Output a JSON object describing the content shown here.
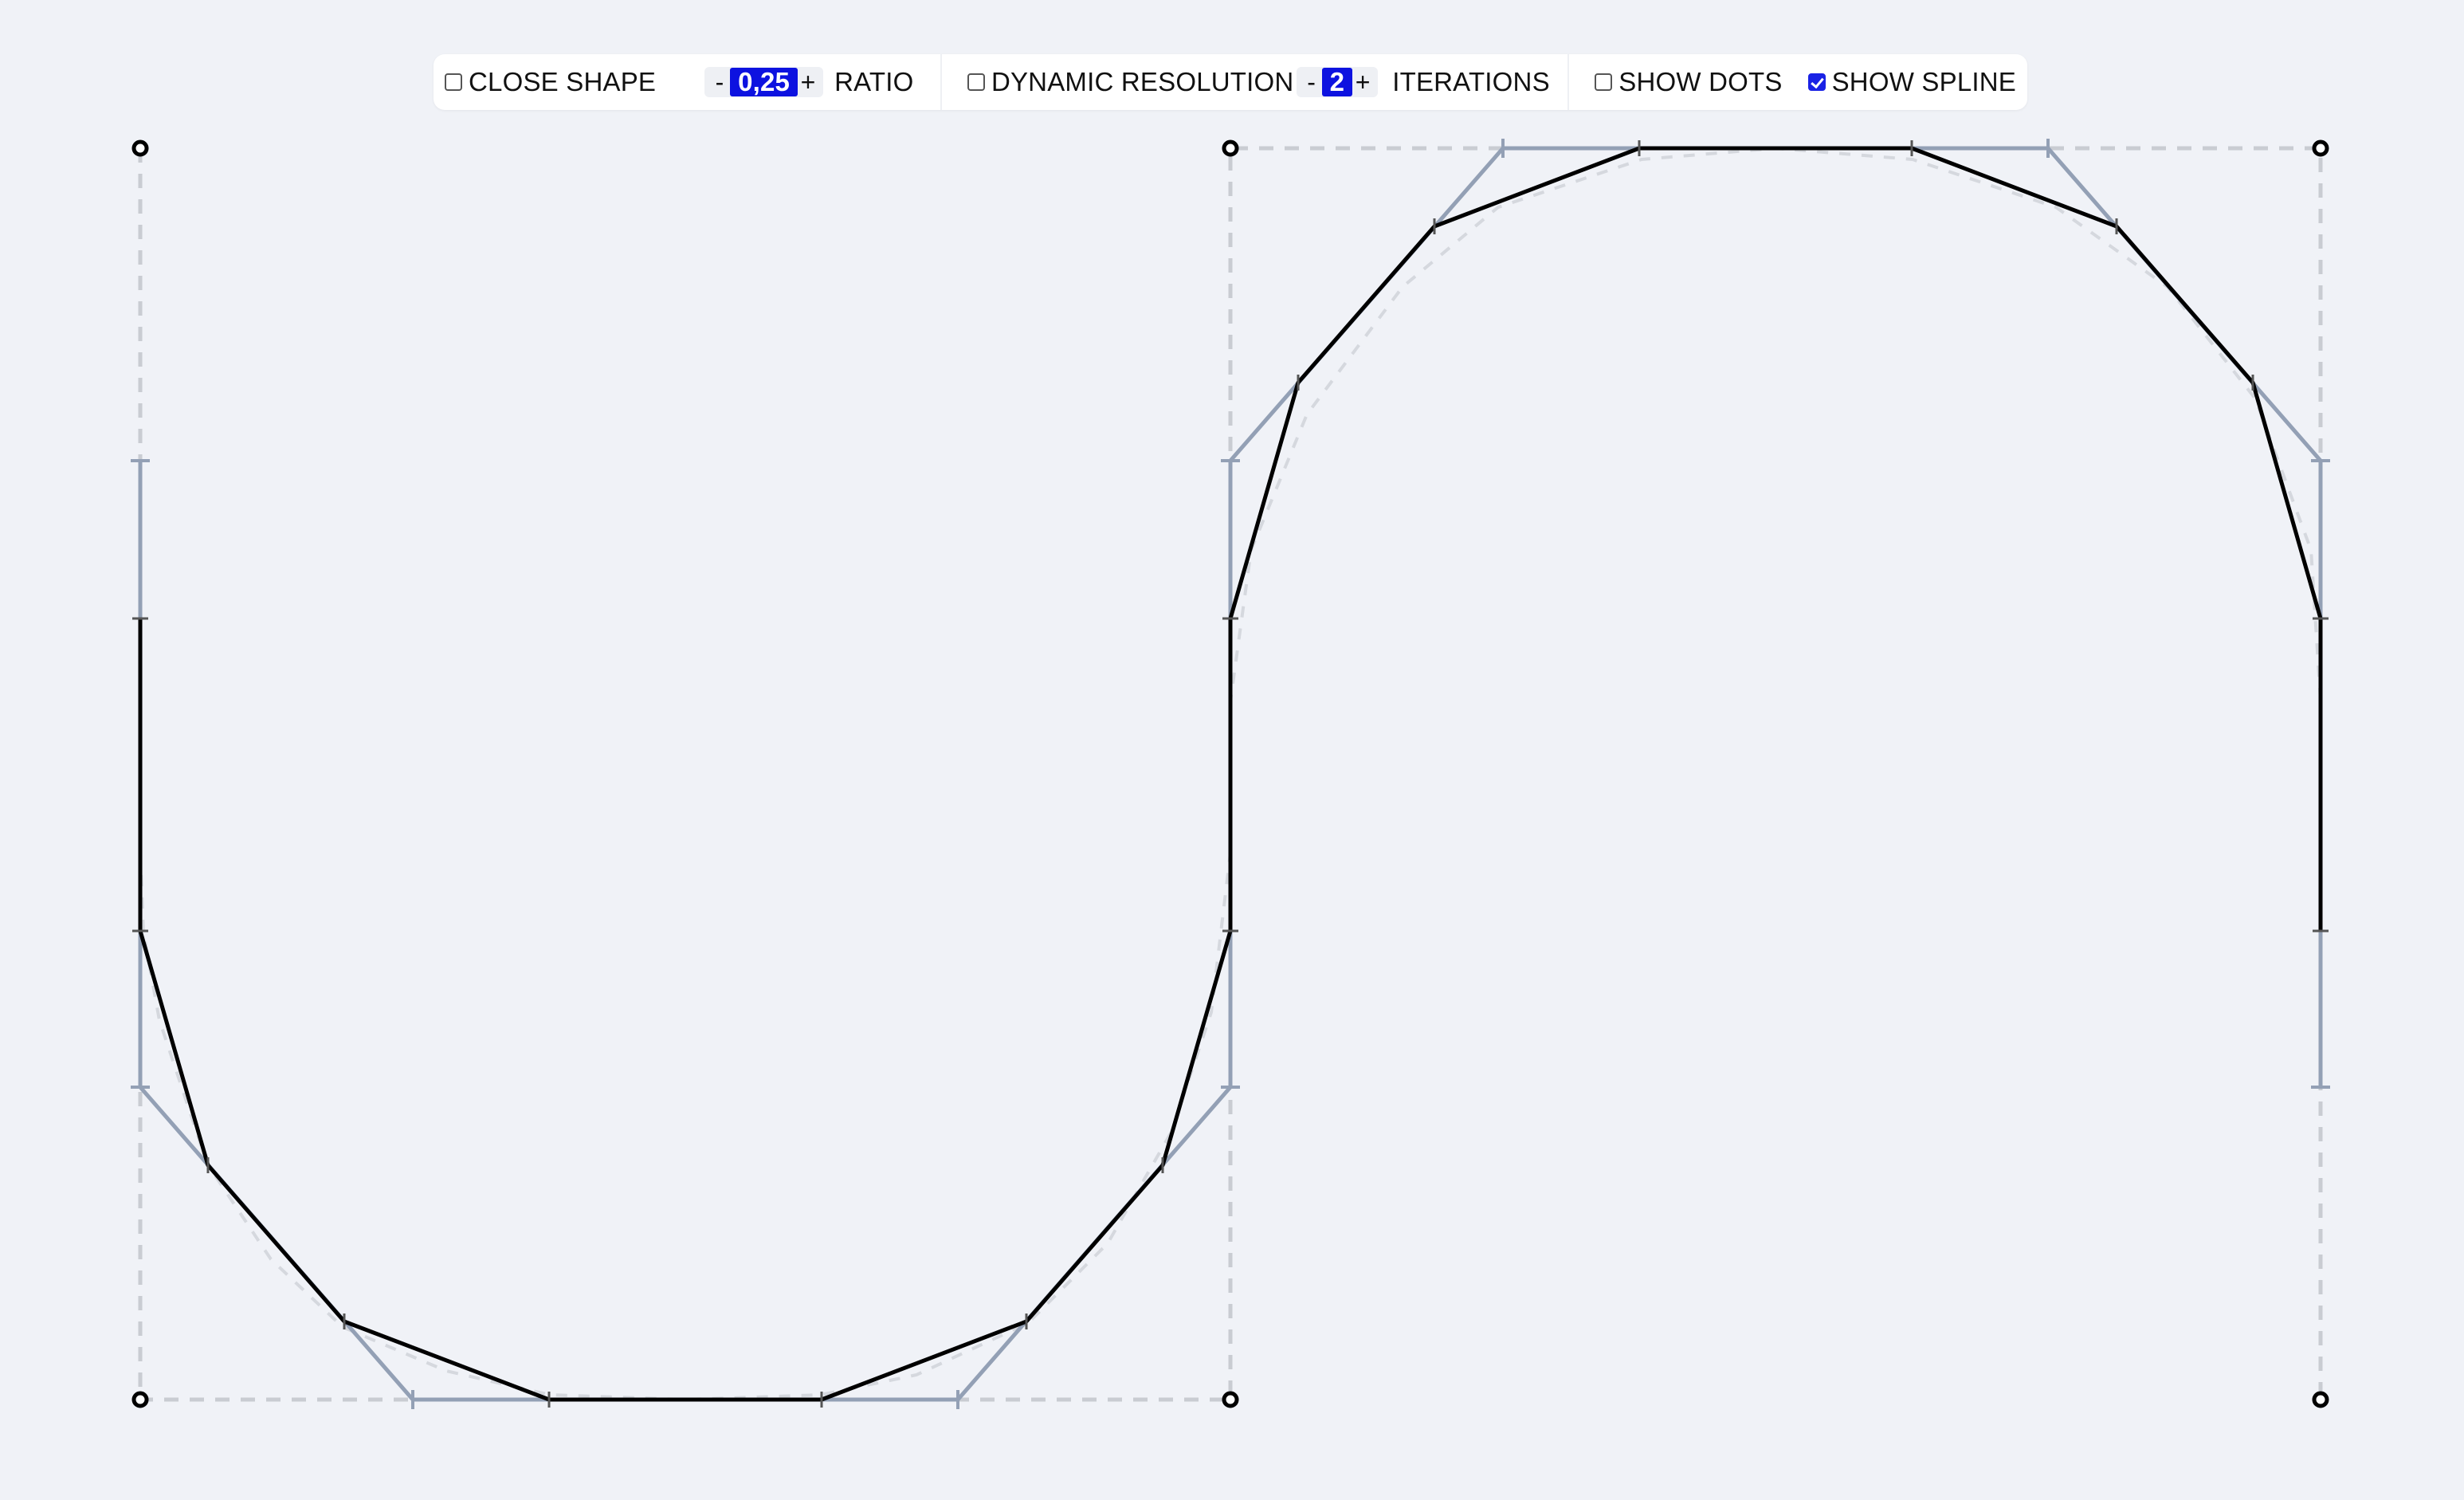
{
  "toolbar": {
    "close_shape": {
      "label": "CLOSE SHAPE",
      "checked": false
    },
    "ratio": {
      "minus": "-",
      "value": "0,25",
      "plus": "+",
      "label": "RATIO"
    },
    "dynamic_resolution": {
      "label": "DYNAMIC RESOLUTION",
      "checked": false
    },
    "iterations": {
      "minus": "-",
      "value": "2",
      "plus": "+",
      "label": "ITERATIONS"
    },
    "show_dots": {
      "label": "SHOW DOTS",
      "checked": false
    },
    "show_spline": {
      "label": "SHOW SPLINE",
      "checked": true
    }
  },
  "colors": {
    "accent": "#0d12e0",
    "spline": "#000000",
    "iteration1": "#93a0b5",
    "control_polygon": "#c9ccd2",
    "background": "#f0f2f7"
  }
}
